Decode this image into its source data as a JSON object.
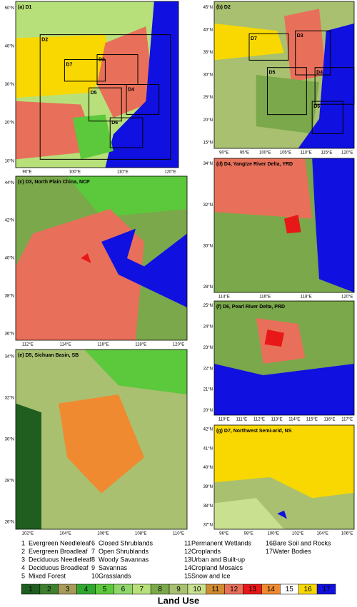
{
  "panels": [
    {
      "label": "(a) D1",
      "lat_ticks": [
        "50°N",
        "40°N",
        "30°N",
        "20°N",
        "10°N"
      ],
      "lon_ticks": [
        "90°E",
        "100°E",
        "110°E",
        "120°E"
      ],
      "boxes": [
        "D2",
        "D3",
        "D4",
        "D5",
        "D6",
        "D7"
      ]
    },
    {
      "label": "(b) D2",
      "lat_ticks": [
        "45°N",
        "40°N",
        "35°N",
        "30°N",
        "25°N",
        "20°N",
        "15°N"
      ],
      "lon_ticks": [
        "90°E",
        "95°E",
        "100°E",
        "105°E",
        "110°E",
        "115°E",
        "120°E"
      ],
      "boxes": [
        "D3",
        "D4",
        "D5",
        "D6",
        "D7"
      ]
    },
    {
      "label": "(c) D3, North Plain China, NCP",
      "lat_ticks": [
        "44°N",
        "42°N",
        "40°N",
        "38°N",
        "36°N"
      ],
      "lon_ticks": [
        "112°E",
        "114°E",
        "116°E",
        "118°E",
        "120°E"
      ]
    },
    {
      "label": "(d) D4, Yangtze River Delta, YRD",
      "lat_ticks": [
        "34°N",
        "32°N",
        "30°N",
        "28°N"
      ],
      "lon_ticks": [
        "114°E",
        "116°E",
        "118°E",
        "120°E"
      ]
    },
    {
      "label": "(e) D5, Sichuan Basin, SB",
      "lat_ticks": [
        "34°N",
        "32°N",
        "30°N",
        "28°N",
        "26°N"
      ],
      "lon_ticks": [
        "102°E",
        "104°E",
        "106°E",
        "108°E",
        "110°E"
      ]
    },
    {
      "label": "(f) D6, Pearl River Delta, PRD",
      "lat_ticks": [
        "25°N",
        "24°N",
        "23°N",
        "22°N",
        "21°N",
        "20°N"
      ],
      "lon_ticks": [
        "110°E",
        "111°E",
        "112°E",
        "113°E",
        "114°E",
        "115°E",
        "116°E",
        "117°E"
      ]
    },
    {
      "label": "(g) D7, Northwest Semi-arid, NS",
      "lat_ticks": [
        "42°N",
        "41°N",
        "40°N",
        "39°N",
        "38°N",
        "37°N"
      ],
      "lon_ticks": [
        "96°E",
        "98°E",
        "100°E",
        "102°E",
        "104°E",
        "106°E"
      ]
    }
  ],
  "legend": {
    "title": "Land Use",
    "items": [
      {
        "number": 1,
        "label": "Evergreen Needleleaf",
        "color": "#1f5e1f"
      },
      {
        "number": 2,
        "label": "Evergreen Broadleaf",
        "color": "#3f7f2f"
      },
      {
        "number": 3,
        "label": "Deciduous Needleleaf",
        "color": "#a89a5a"
      },
      {
        "number": 4,
        "label": "Deciduous Broadleaf",
        "color": "#2fa82f"
      },
      {
        "number": 5,
        "label": "Mixed Forest",
        "color": "#5cc83c"
      },
      {
        "number": 6,
        "label": "Closed Shrublands",
        "color": "#8fd66a"
      },
      {
        "number": 7,
        "label": "Open Shrublands",
        "color": "#b8e07a"
      },
      {
        "number": 8,
        "label": "Woody Savannas",
        "color": "#7aa84a"
      },
      {
        "number": 9,
        "label": "Savannas",
        "color": "#a8c070"
      },
      {
        "number": 10,
        "label": "Grasslands",
        "color": "#c8e090"
      },
      {
        "number": 11,
        "label": "Permanent Wetlands",
        "color": "#d08a30"
      },
      {
        "number": 12,
        "label": "Croplands",
        "color": "#e8705a"
      },
      {
        "number": 13,
        "label": "Urban and Built-up",
        "color": "#e81818"
      },
      {
        "number": 14,
        "label": "Cropland Mosaics",
        "color": "#f08a30"
      },
      {
        "number": 15,
        "label": "Snow and Ice",
        "color": "#ffffff"
      },
      {
        "number": 16,
        "label": "Bare Soil and Rocks",
        "color": "#f8d800"
      },
      {
        "number": 17,
        "label": "Water Bodies",
        "color": "#1010e0"
      }
    ]
  }
}
